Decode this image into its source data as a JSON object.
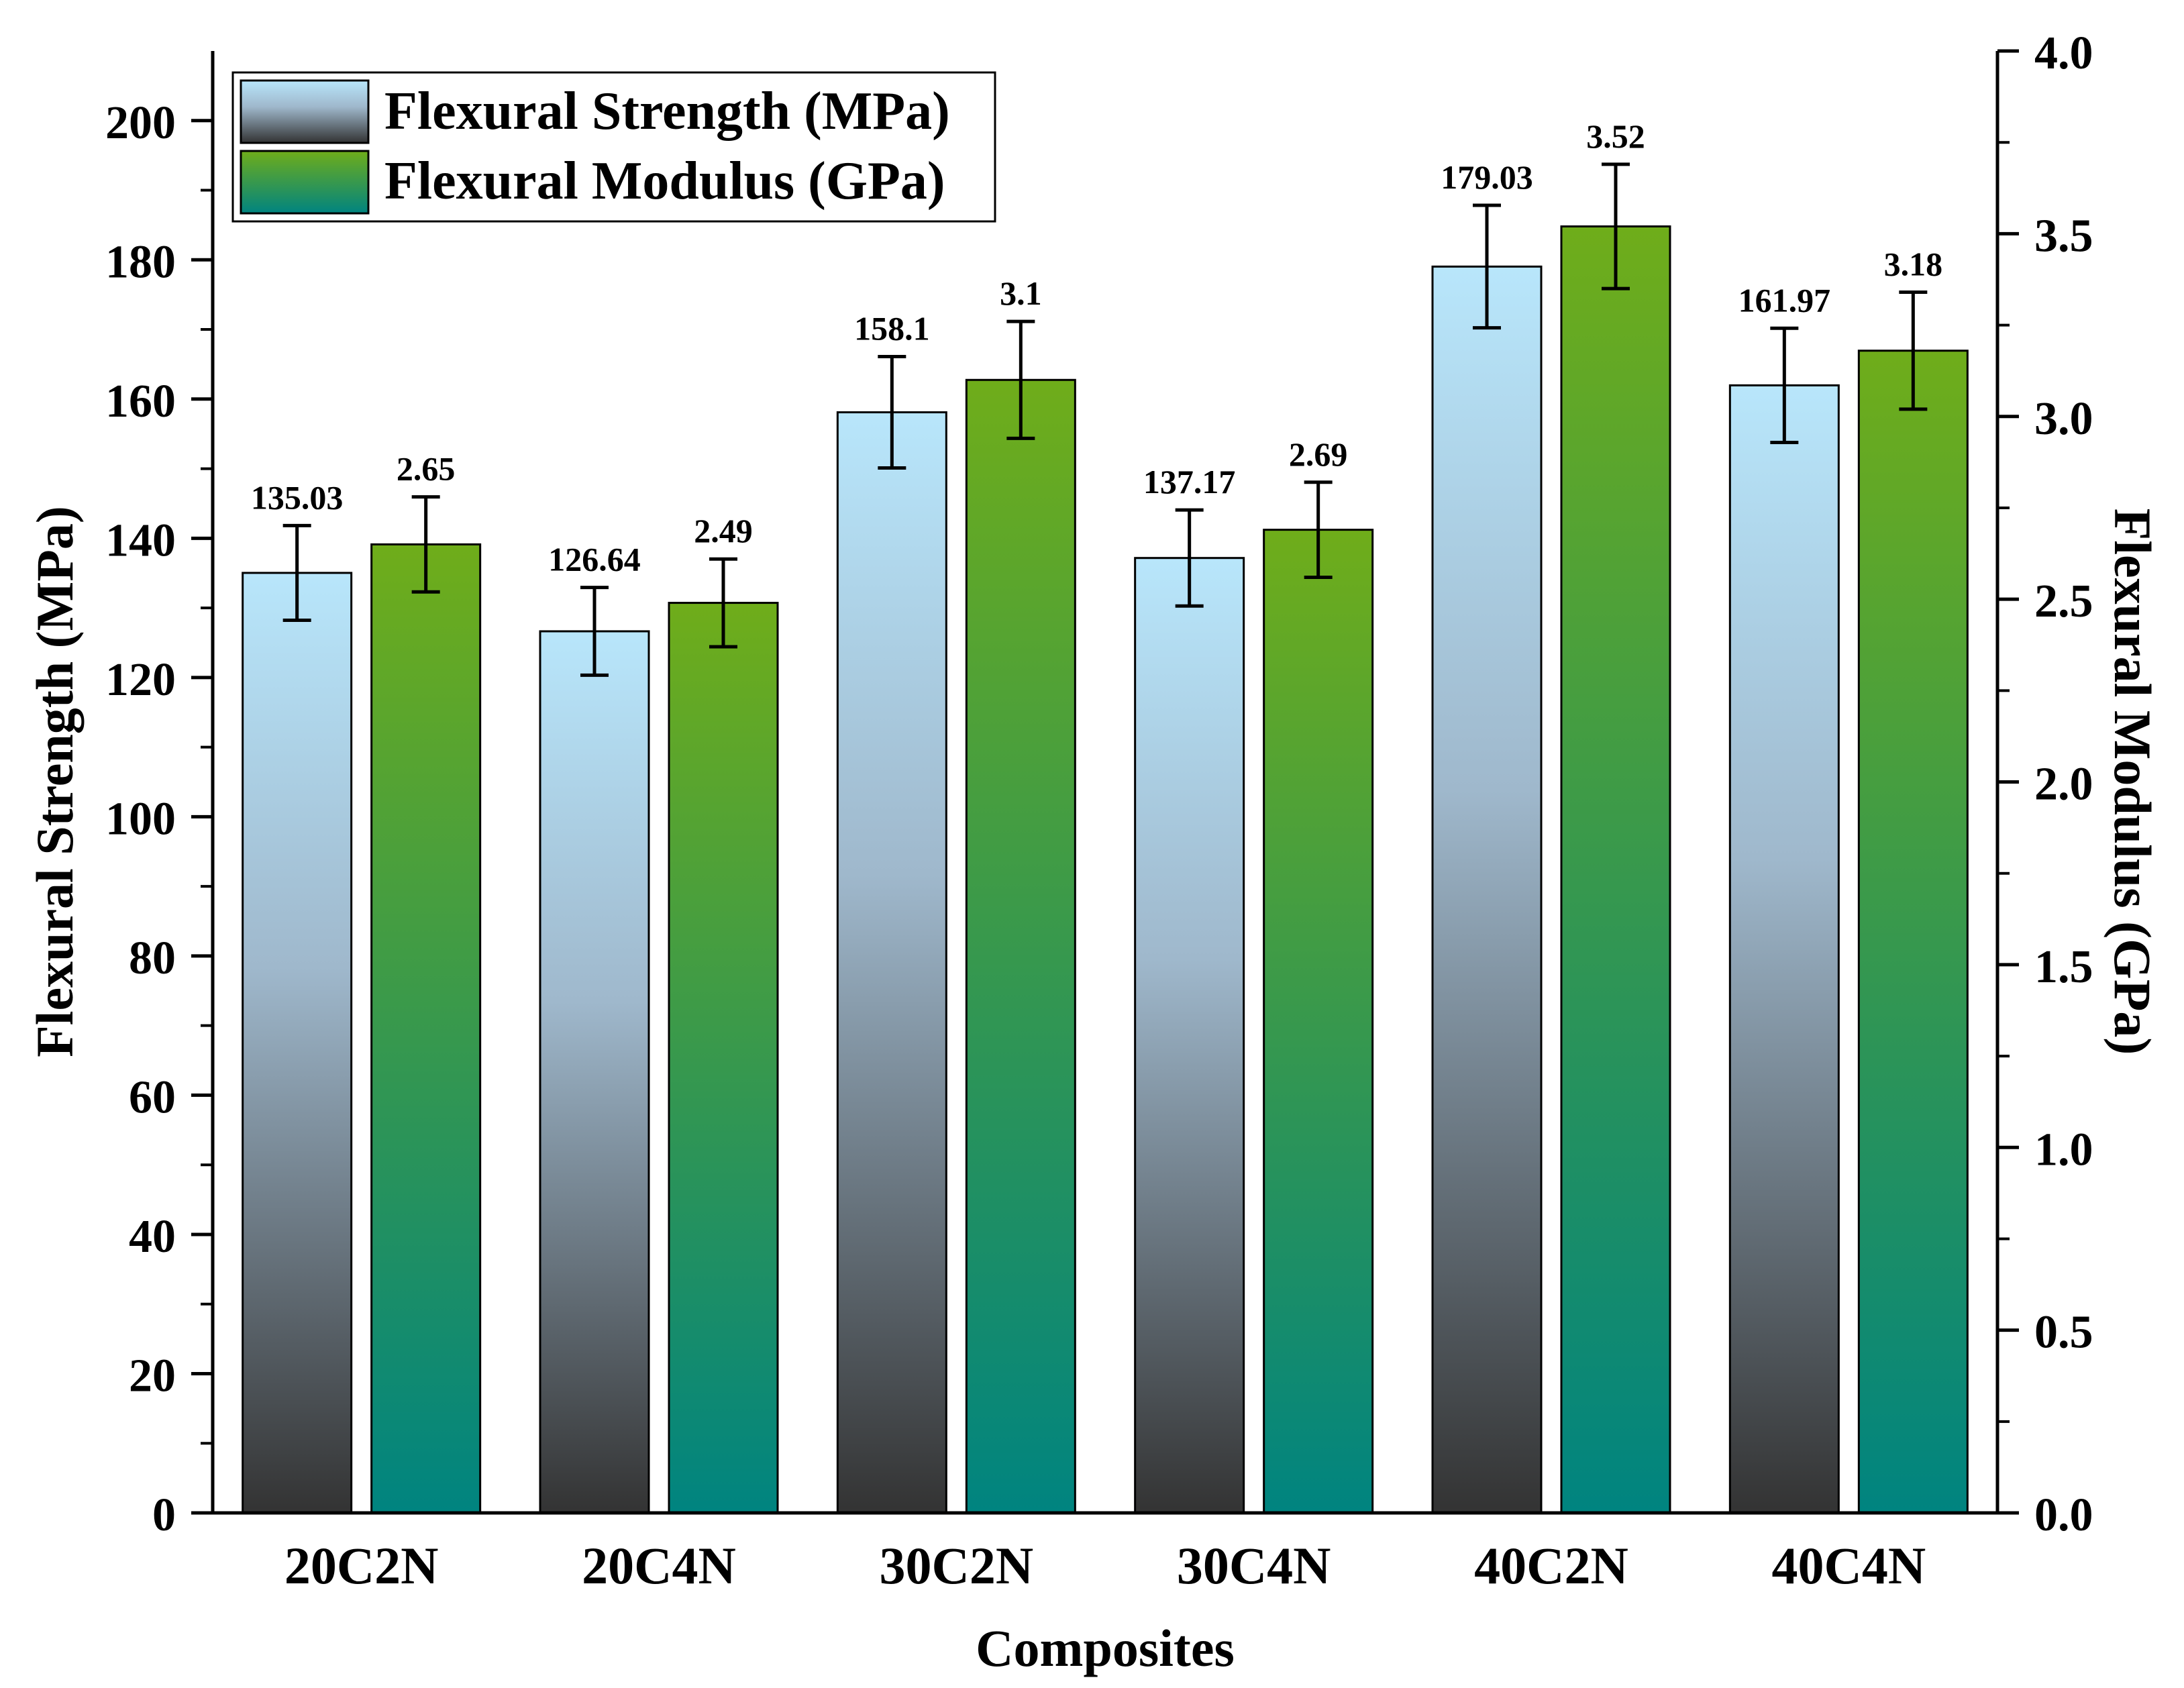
{
  "chart_data": {
    "type": "bar",
    "xlabel": "Composites",
    "ylabel": "Flexural Strength (MPa)",
    "y2label": "Flexural Modulus (GPa)",
    "categories": [
      "20C2N",
      "20C4N",
      "30C2N",
      "30C4N",
      "40C2N",
      "40C4N"
    ],
    "ylim": [
      0,
      210
    ],
    "y2lim": [
      0,
      4.0
    ],
    "yticks": [
      "0",
      "20",
      "40",
      "60",
      "80",
      "100",
      "120",
      "140",
      "160",
      "180",
      "200"
    ],
    "y2ticks": [
      "0.0",
      "0.5",
      "1.0",
      "1.5",
      "2.0",
      "2.5",
      "3.0",
      "3.5",
      "4.0"
    ],
    "legend_position": "top-left",
    "series": [
      {
        "name": "Flexural Strength (MPa)",
        "axis": "left",
        "values": [
          135.03,
          126.64,
          158.1,
          137.17,
          179.03,
          161.97
        ],
        "labels": [
          "135.03",
          "126.64",
          "158.1",
          "137.17",
          "179.03",
          "161.97"
        ],
        "errors": [
          6.8,
          6.3,
          8.0,
          6.9,
          8.8,
          8.2
        ],
        "gradient": [
          "#b8e6fb",
          "#333333"
        ]
      },
      {
        "name": "Flexural Modulus (GPa)",
        "axis": "right",
        "values": [
          2.65,
          2.49,
          3.1,
          2.69,
          3.52,
          3.18
        ],
        "labels": [
          "2.65",
          "2.49",
          "3.1",
          "2.69",
          "3.52",
          "3.18"
        ],
        "errors": [
          0.13,
          0.12,
          0.16,
          0.13,
          0.17,
          0.16
        ],
        "gradient": [
          "#6fad1a",
          "#008480"
        ]
      }
    ]
  }
}
